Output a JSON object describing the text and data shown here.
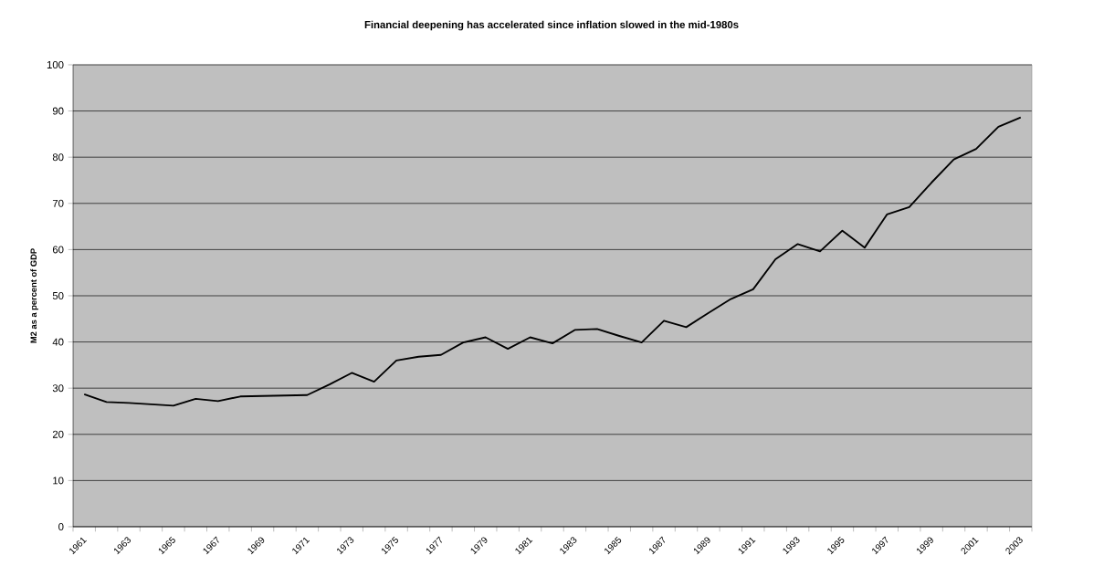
{
  "chart_data": {
    "type": "line",
    "title": "Financial deepening has accelerated since inflation slowed in the mid-1980s",
    "ylabel": "M2 as a percent of GDP",
    "categories": [
      "1961",
      null,
      "1963",
      null,
      "1965",
      null,
      "1967",
      null,
      "1969",
      null,
      "1971",
      null,
      "1973",
      null,
      "1975",
      null,
      "1977",
      null,
      "1979",
      null,
      "1981",
      null,
      "1983",
      null,
      "1985",
      null,
      "1987",
      null,
      "1989",
      null,
      "1991",
      null,
      "1993",
      null,
      "1995",
      null,
      "1997",
      null,
      "1999",
      null,
      "2001",
      null,
      "2003"
    ],
    "values": [
      28.7,
      27.0,
      26.8,
      26.5,
      26.2,
      27.7,
      27.2,
      28.2,
      28.3,
      28.4,
      28.5,
      30.8,
      33.3,
      31.4,
      36.0,
      36.8,
      37.2,
      39.9,
      41.0,
      38.5,
      41.0,
      39.7,
      42.6,
      42.8,
      41.3,
      39.9,
      44.6,
      43.2,
      46.3,
      49.3,
      51.4,
      57.9,
      61.2,
      59.6,
      64.1,
      60.4,
      67.6,
      69.2,
      74.5,
      79.5,
      81.8,
      86.6,
      88.6
    ],
    "color": "#000000",
    "ylim": [
      0,
      100
    ],
    "yticks": [
      0,
      10,
      20,
      30,
      40,
      50,
      60,
      70,
      80,
      90,
      100
    ],
    "grid": "y",
    "marker": "none",
    "line_style": "solid"
  }
}
